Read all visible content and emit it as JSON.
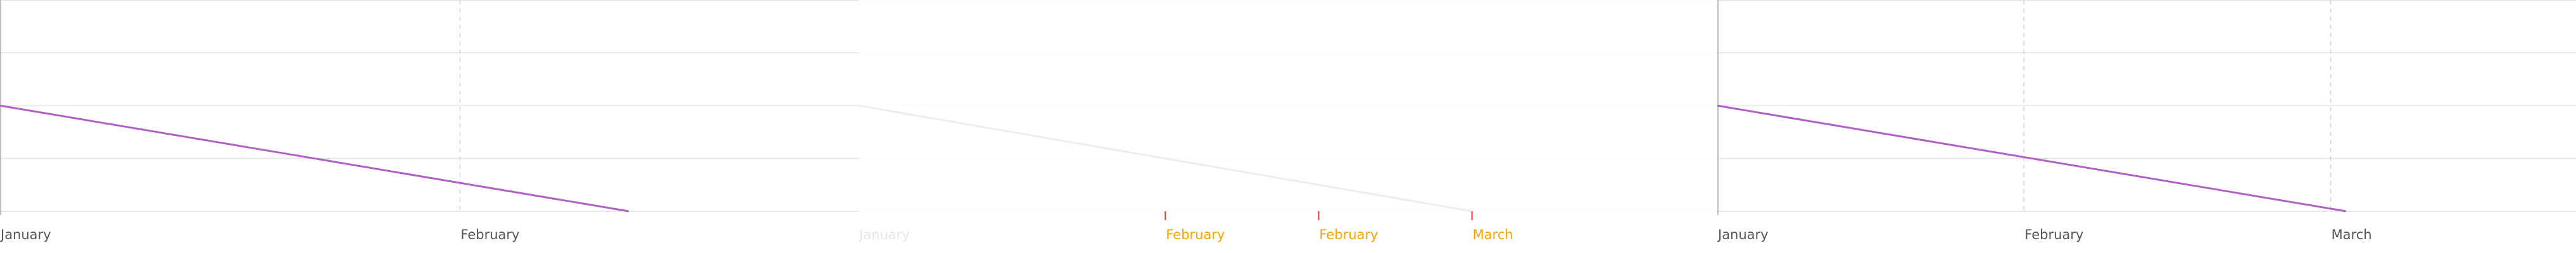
{
  "chart_data": [
    {
      "type": "line",
      "title": "",
      "x_ticks": [
        {
          "label": "January",
          "x": 0
        },
        {
          "label": "February",
          "x": 1.5
        }
      ],
      "xlim": [
        0,
        2.8
      ],
      "ylim": [
        0,
        4
      ],
      "grid": true,
      "series": [
        {
          "color": "#b062c4",
          "points": [
            [
              0,
              2
            ],
            [
              2.05,
              0
            ]
          ]
        }
      ],
      "colors": {
        "line": "#b062c4",
        "grid_h": "#e2e2e2",
        "grid_v": "#d4d4d4",
        "axis": "#aaaaaa",
        "text": "#555555"
      }
    },
    {
      "type": "line",
      "title": "",
      "x_ticks": [
        {
          "label": "January",
          "x": 0,
          "color": "#e6e6e6"
        },
        {
          "label": "February",
          "x": 1,
          "color": "#f2a500",
          "marker": "#e53935"
        },
        {
          "label": "February",
          "x": 1.5,
          "color": "#f2a500",
          "marker": "#e53935"
        },
        {
          "label": "March",
          "x": 2,
          "color": "#f2a500",
          "marker": "#e53935"
        }
      ],
      "xlim": [
        0,
        2.8
      ],
      "ylim": [
        0,
        4
      ],
      "grid": true,
      "series": [
        {
          "color": "#ededed",
          "points": [
            [
              0,
              2
            ],
            [
              2,
              0
            ]
          ]
        }
      ],
      "colors": {
        "line": "#ededed",
        "grid_h": "#fbfbfb",
        "grid_v": "#ffffff",
        "axis": "#ffffff",
        "text": "#e6e6e6"
      }
    },
    {
      "type": "line",
      "title": "",
      "x_ticks": [
        {
          "label": "January",
          "x": 0
        },
        {
          "label": "February",
          "x": 1
        },
        {
          "label": "March",
          "x": 2
        }
      ],
      "xlim": [
        0,
        2.8
      ],
      "ylim": [
        0,
        4
      ],
      "grid": true,
      "series": [
        {
          "color": "#b062c4",
          "points": [
            [
              0,
              2
            ],
            [
              2.05,
              0
            ]
          ]
        }
      ],
      "colors": {
        "line": "#b062c4",
        "grid_h": "#e2e2e2",
        "grid_v": "#d4d4d4",
        "axis": "#aaaaaa",
        "text": "#555555"
      }
    }
  ]
}
